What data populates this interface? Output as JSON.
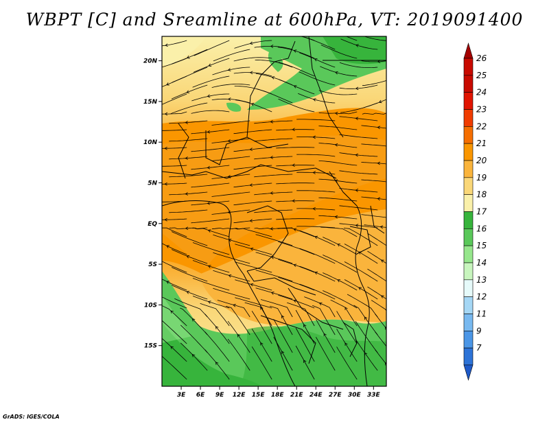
{
  "title": "WBPT [C] and Sreamline at 600hPa, VT: 2019091400",
  "credit": "GrADS: IGES/COLA",
  "map": {
    "lon_range": [
      0,
      35
    ],
    "lat_range": [
      -20,
      23
    ],
    "x_ticks": [
      {
        "value": 3,
        "label": "3E"
      },
      {
        "value": 6,
        "label": "6E"
      },
      {
        "value": 9,
        "label": "9E"
      },
      {
        "value": 12,
        "label": "12E"
      },
      {
        "value": 15,
        "label": "15E"
      },
      {
        "value": 18,
        "label": "18E"
      },
      {
        "value": 21,
        "label": "21E"
      },
      {
        "value": 24,
        "label": "24E"
      },
      {
        "value": 27,
        "label": "27E"
      },
      {
        "value": 30,
        "label": "30E"
      },
      {
        "value": 33,
        "label": "33E"
      }
    ],
    "y_ticks": [
      {
        "value": 20,
        "label": "20N"
      },
      {
        "value": 15,
        "label": "15N"
      },
      {
        "value": 10,
        "label": "10N"
      },
      {
        "value": 5,
        "label": "5N"
      },
      {
        "value": 0,
        "label": "EQ"
      },
      {
        "value": -5,
        "label": "5S"
      },
      {
        "value": -10,
        "label": "10S"
      },
      {
        "value": -15,
        "label": "15S"
      }
    ]
  },
  "colorbar": {
    "levels": [
      {
        "label": "26",
        "color": "#a50000"
      },
      {
        "label": "25",
        "color": "#c80a00"
      },
      {
        "label": "24",
        "color": "#e11400"
      },
      {
        "label": "23",
        "color": "#f03c00"
      },
      {
        "label": "22",
        "color": "#f56e00"
      },
      {
        "label": "21",
        "color": "#fa9600"
      },
      {
        "label": "20",
        "color": "#fab43c"
      },
      {
        "label": "19",
        "color": "#fad778"
      },
      {
        "label": "18",
        "color": "#faf0aa"
      },
      {
        "label": "17",
        "color": "#37b43c"
      },
      {
        "label": "16",
        "color": "#5ac85a"
      },
      {
        "label": "15",
        "color": "#96e68c"
      },
      {
        "label": "14",
        "color": "#c8f5be"
      },
      {
        "label": "13",
        "color": "#e6fafa"
      },
      {
        "label": "12",
        "color": "#a5d7f5"
      },
      {
        "label": "11",
        "color": "#78b9f0"
      },
      {
        "label": "9",
        "color": "#4b96e6"
      },
      {
        "label": "7",
        "color": "#2d73d7"
      }
    ],
    "bottom_color": "#1e5ac8"
  }
}
